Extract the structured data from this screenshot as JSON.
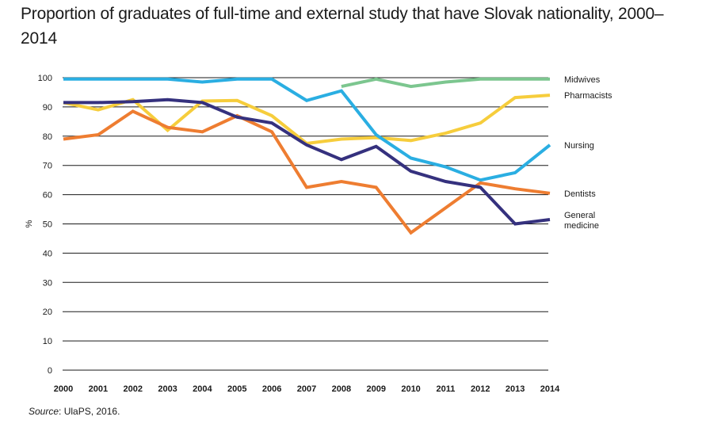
{
  "title": "Proportion of graduates of full-time and external study that have Slovak nationality, 2000–2014",
  "source": {
    "label": "Source",
    "text": ": UlaPS, 2016."
  },
  "chart_data": {
    "type": "line",
    "title": "Proportion of graduates of full-time and external study that have Slovak nationality, 2000–2014",
    "ylabel": "%",
    "xlabel": "",
    "ylim": [
      0,
      100
    ],
    "yticks": [
      0,
      10,
      20,
      30,
      40,
      50,
      60,
      70,
      80,
      90,
      100
    ],
    "grid": true,
    "legend": "right, labels at line ends",
    "x": [
      "2000",
      "2001",
      "2002",
      "2003",
      "2004",
      "2005",
      "2006",
      "2007",
      "2008",
      "2009",
      "2010",
      "2011",
      "2012",
      "2013",
      "2014"
    ],
    "series": [
      {
        "name": "Midwives",
        "color": "#7cc68f",
        "values": [
          null,
          null,
          null,
          null,
          null,
          null,
          null,
          null,
          97,
          99.5,
          97,
          98.5,
          99.5,
          99.5,
          99.5
        ]
      },
      {
        "name": "Pharmacists",
        "color": "#f6cd3c",
        "values": [
          91.5,
          89,
          92.5,
          82,
          92,
          92.2,
          87,
          77.5,
          79,
          79.5,
          78.5,
          81,
          84.5,
          93.2,
          94
        ]
      },
      {
        "name": "Nursing",
        "color": "#2aaee2",
        "values": [
          99.5,
          99.5,
          99.5,
          99.5,
          98.5,
          99.5,
          99.5,
          92.2,
          95.5,
          80.5,
          72.5,
          69.5,
          65,
          67.5,
          77
        ]
      },
      {
        "name": "Dentists",
        "color": "#ee7d31",
        "values": [
          79,
          80.5,
          88.5,
          83,
          81.5,
          87,
          81.5,
          62.5,
          64.5,
          62.5,
          47,
          55.5,
          64,
          62,
          60.5
        ]
      },
      {
        "name": "General medicine",
        "color": "#35317e",
        "values": [
          91.5,
          91.5,
          91.8,
          92.5,
          91.5,
          86.5,
          84.5,
          77,
          72,
          76.5,
          68,
          64.5,
          62.5,
          50,
          51.5
        ]
      }
    ],
    "series_labels": [
      {
        "series": "Midwives",
        "lines": [
          "Midwives"
        ]
      },
      {
        "series": "Pharmacists",
        "lines": [
          "Pharmacists"
        ]
      },
      {
        "series": "Nursing",
        "lines": [
          "Nursing"
        ]
      },
      {
        "series": "Dentists",
        "lines": [
          "Dentists"
        ]
      },
      {
        "series": "General medicine",
        "lines": [
          "General",
          "medicine"
        ]
      }
    ]
  }
}
